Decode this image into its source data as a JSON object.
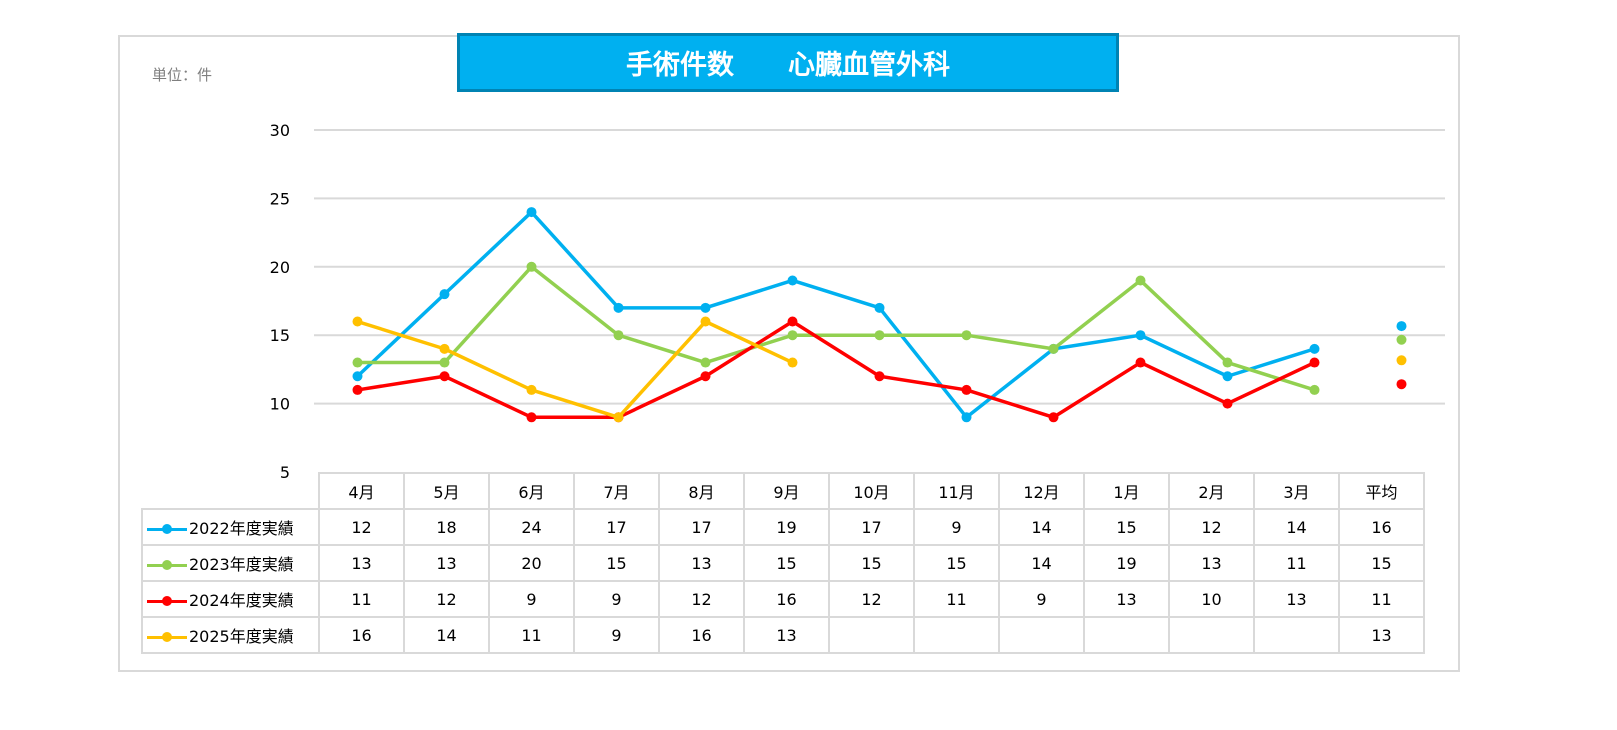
{
  "title": "手術件数　　心臓血管外科",
  "unit_label": "単位：件",
  "chart_data": {
    "type": "line",
    "title": "手術件数　　心臓血管外科",
    "categories": [
      "4月",
      "5月",
      "6月",
      "7月",
      "8月",
      "9月",
      "10月",
      "11月",
      "12月",
      "1月",
      "2月",
      "3月"
    ],
    "average_label": "平均",
    "yticks": [
      5,
      10,
      15,
      20,
      25,
      30
    ],
    "ylim": [
      5,
      30
    ],
    "grid": true,
    "legend_placement": "table-left",
    "series": [
      {
        "name": "2022年度実績",
        "color": "#00b0f0",
        "values": [
          12,
          18,
          24,
          17,
          17,
          19,
          17,
          9,
          14,
          15,
          12,
          14
        ],
        "average": "16"
      },
      {
        "name": "2023年度実績",
        "color": "#92d050",
        "values": [
          13,
          13,
          20,
          15,
          13,
          15,
          15,
          15,
          14,
          19,
          13,
          11
        ],
        "average": "15"
      },
      {
        "name": "2024年度実績",
        "color": "#ff0000",
        "values": [
          11,
          12,
          9,
          9,
          12,
          16,
          12,
          11,
          9,
          13,
          10,
          13
        ],
        "average": "11"
      },
      {
        "name": "2025年度実績",
        "color": "#ffc000",
        "values": [
          16,
          14,
          11,
          9,
          16,
          13,
          null,
          null,
          null,
          null,
          null,
          null
        ],
        "average": "13"
      }
    ]
  }
}
